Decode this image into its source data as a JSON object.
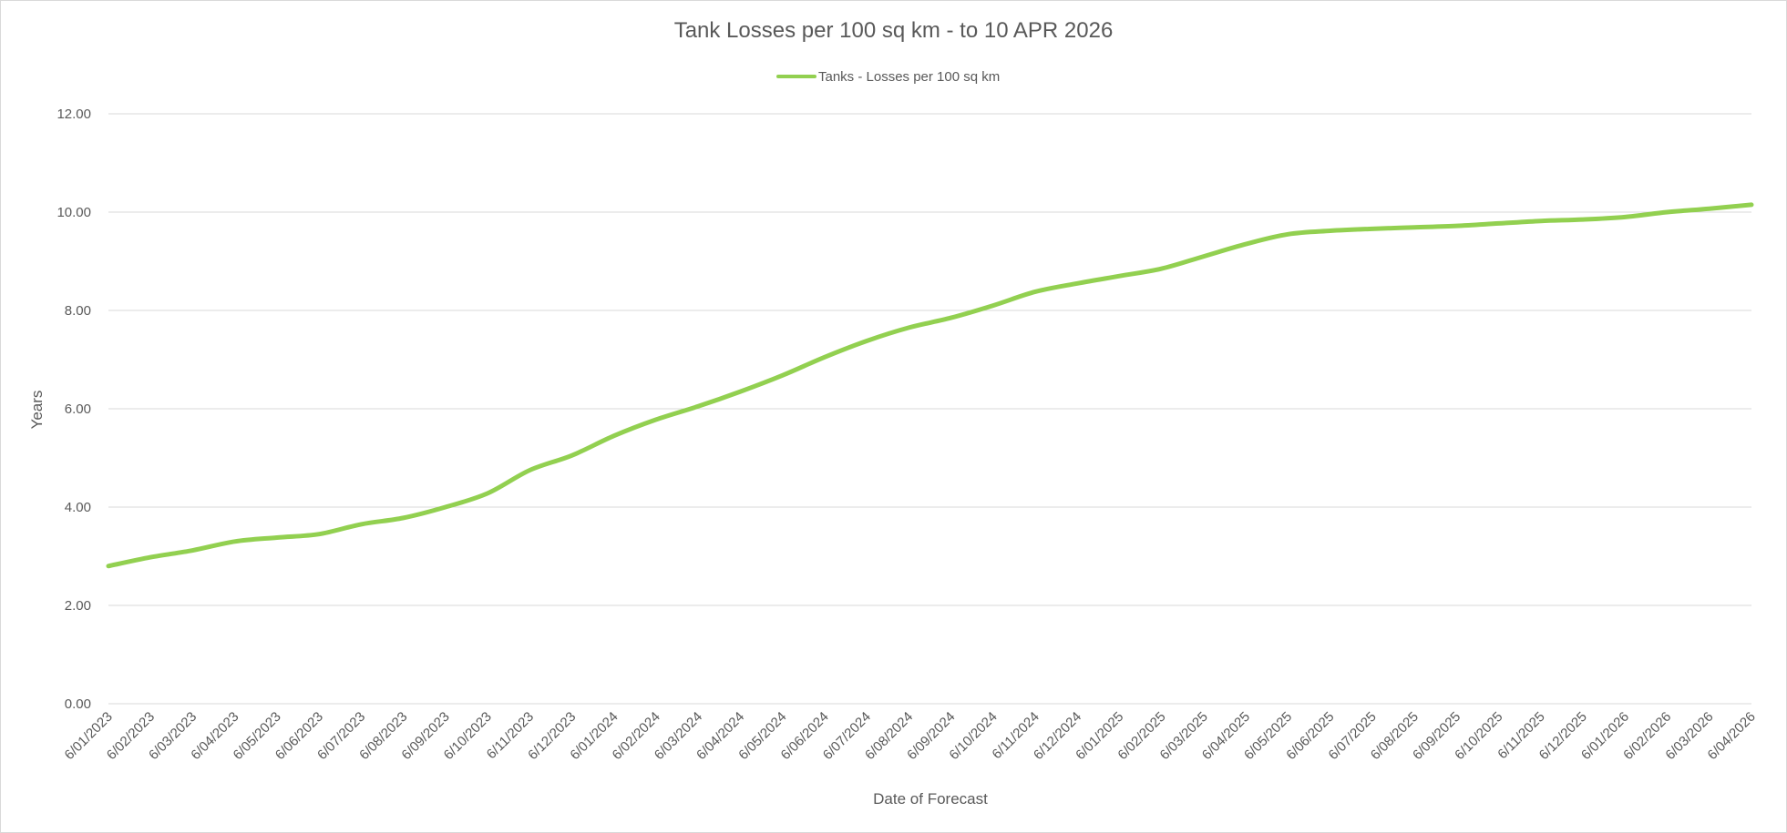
{
  "chart_data": {
    "type": "line",
    "title": "Tank Losses per 100 sq km - to 10 APR 2026",
    "xlabel": "Date of Forecast",
    "ylabel": "Years",
    "ylim": [
      0,
      12
    ],
    "yticks": [
      "0.00",
      "2.00",
      "4.00",
      "6.00",
      "8.00",
      "10.00",
      "12.00"
    ],
    "grid": true,
    "legend_position": "top",
    "categories": [
      "6/01/2023",
      "6/02/2023",
      "6/03/2023",
      "6/04/2023",
      "6/05/2023",
      "6/06/2023",
      "6/07/2023",
      "6/08/2023",
      "6/09/2023",
      "6/10/2023",
      "6/11/2023",
      "6/12/2023",
      "6/01/2024",
      "6/02/2024",
      "6/03/2024",
      "6/04/2024",
      "6/05/2024",
      "6/06/2024",
      "6/07/2024",
      "6/08/2024",
      "6/09/2024",
      "6/10/2024",
      "6/11/2024",
      "6/12/2024",
      "6/01/2025",
      "6/02/2025",
      "6/03/2025",
      "6/04/2025",
      "6/05/2025",
      "6/06/2025",
      "6/07/2025",
      "6/08/2025",
      "6/09/2025",
      "6/10/2025",
      "6/11/2025",
      "6/12/2025",
      "6/01/2026",
      "6/02/2026",
      "6/03/2026",
      "6/04/2026"
    ],
    "series": [
      {
        "name": "Tanks - Losses per 100 sq km",
        "color": "#92d050",
        "values": [
          2.8,
          2.98,
          3.12,
          3.3,
          3.38,
          3.45,
          3.65,
          3.78,
          4.0,
          4.28,
          4.75,
          5.05,
          5.45,
          5.78,
          6.05,
          6.35,
          6.68,
          7.05,
          7.38,
          7.65,
          7.85,
          8.1,
          8.38,
          8.55,
          8.7,
          8.85,
          9.1,
          9.35,
          9.55,
          9.62,
          9.66,
          9.69,
          9.72,
          9.77,
          9.82,
          9.85,
          9.9,
          10.0,
          10.07,
          10.15
        ]
      }
    ]
  }
}
